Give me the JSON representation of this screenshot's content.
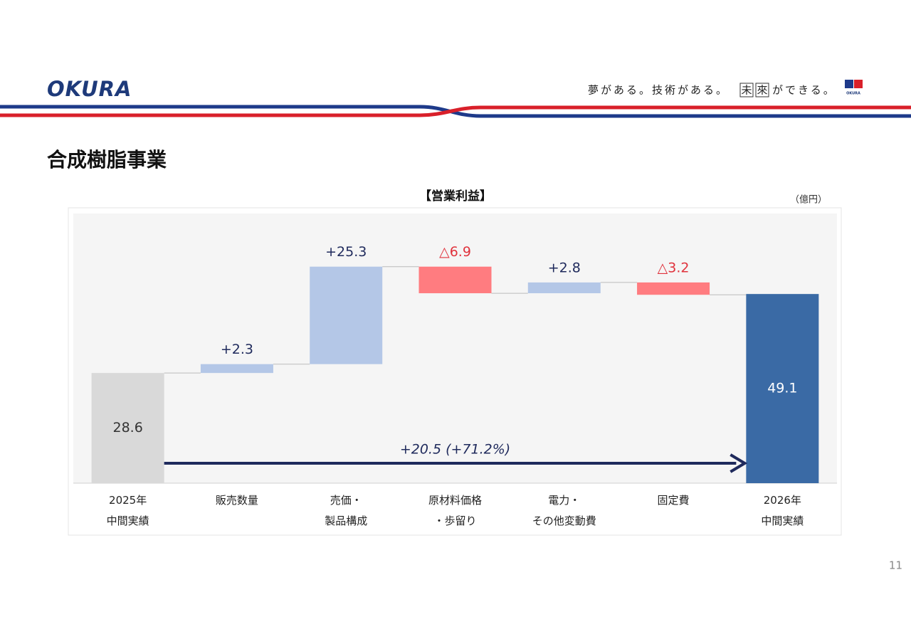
{
  "header": {
    "logo": "OKURA",
    "slogan_parts": [
      "夢がある。技術がある。",
      "未",
      "來",
      "ができる。"
    ],
    "logo_small": "OKURA"
  },
  "page_title": "合成樹脂事業",
  "page_number": "11",
  "chart_data": {
    "type": "waterfall",
    "title": "【営業利益】",
    "unit": "（億円）",
    "categories": [
      "2025年\n中間実績",
      "販売数量",
      "売価・\n製品構成",
      "原材料価格\n・歩留り",
      "電力・\nその他変動費",
      "固定費",
      "2026年\n中間実績"
    ],
    "measures": [
      "absolute",
      "relative",
      "relative",
      "relative",
      "relative",
      "relative",
      "total"
    ],
    "values": [
      28.6,
      2.3,
      25.3,
      -6.9,
      2.8,
      -3.2,
      49.1
    ],
    "value_labels": [
      "28.6",
      "+2.3",
      "+25.3",
      "△6.9",
      "+2.8",
      "△3.2",
      "49.1"
    ],
    "colors": [
      "#d9d9d9",
      "#b4c7e7",
      "#b4c7e7",
      "#ff7c80",
      "#b4c7e7",
      "#ff7c80",
      "#3a6aa5"
    ],
    "value_label_colors": [
      "#333333",
      "#1f2a5c",
      "#1f2a5c",
      "#e0323c",
      "#1f2a5c",
      "#e0323c",
      "#ffffff"
    ],
    "ylim": [
      0,
      70
    ],
    "annotation": "+20.5 (+71.2%)"
  }
}
